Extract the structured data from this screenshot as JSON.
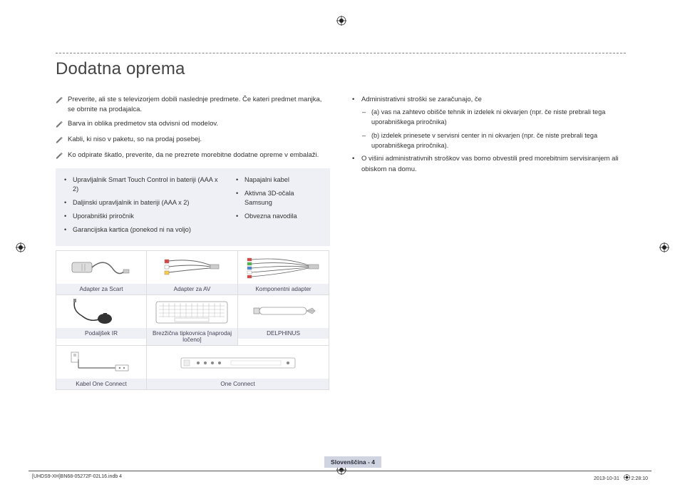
{
  "title": "Dodatna oprema",
  "notes": [
    "Preverite, ali ste s televizorjem dobili naslednje predmete. Če kateri predmet manjka, se obrnite na prodajalca.",
    "Barva in oblika predmetov sta odvisni od modelov.",
    "Kabli, ki niso v paketu, so na prodaj posebej.",
    "Ko odpirate škatlo, preverite, da ne prezrete morebitne dodatne opreme v embalaži."
  ],
  "box_left": [
    "Upravljalnik Smart Touch Control in bateriji (AAA x 2)",
    "Daljinski upravljalnik in bateriji (AAA x 2)",
    "Uporabniški priročnik",
    "Garancijska kartica (ponekod ni na voljo)"
  ],
  "box_right": [
    "Napajalni kabel",
    "Aktivna 3D-očala Samsung",
    "Obvezna navodila"
  ],
  "accessories": [
    {
      "label": "Adapter za Scart",
      "svg": "scart"
    },
    {
      "label": "Adapter za AV",
      "svg": "av"
    },
    {
      "label": "Komponentni adapter",
      "svg": "component"
    },
    {
      "label": "Podaljšek IR",
      "svg": "ir"
    },
    {
      "label": "Brezžična tipkovnica [naprodaj ločeno]",
      "svg": "keyboard"
    },
    {
      "label": "DELPHINUS",
      "svg": "pen"
    },
    {
      "label": "Kabel One Connect",
      "svg": "cable"
    },
    {
      "label": "One Connect",
      "svg": "oneconnect"
    }
  ],
  "right_col": {
    "intro": "Administrativni stroški se zaračunajo, če",
    "subitems": [
      "(a) vas na zahtevo obišče tehnik in izdelek ni okvarjen (npr. če niste prebrali tega uporabniškega priročnika)",
      "(b) izdelek prinesete v servisni center in ni okvarjen (npr. če niste prebrali tega uporabniškega priročnika)."
    ],
    "note2": "O višini administrativnih stroškov vas bomo obvestili pred morebitnim servisiranjem ali obiskom na domu."
  },
  "page_label": "Slovenščina - 4",
  "footer_left": "[UHDS9-XH]BN68-05272F-02L16.indb   4",
  "footer_right_date": "2013-10-31",
  "footer_right_time": "2:28:10",
  "colors": {
    "box_bg": "#eef0f5",
    "band_bg": "#cfd4e0",
    "border": "#dddddd"
  }
}
